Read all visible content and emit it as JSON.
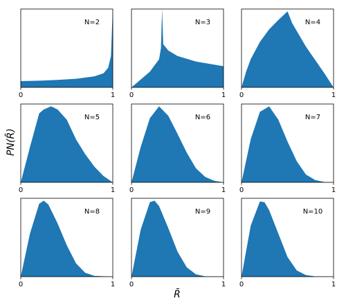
{
  "chart_data": [
    {
      "type": "area",
      "annotation": "N=2",
      "color": "#1f77b4",
      "xlim": [
        0,
        1
      ],
      "ylim": [
        0,
        1
      ],
      "xticks": [
        0,
        1
      ],
      "x": [
        0,
        0.2,
        0.4,
        0.6,
        0.8,
        0.9,
        0.95,
        0.98,
        1.0
      ],
      "values": [
        0.08,
        0.085,
        0.095,
        0.11,
        0.14,
        0.18,
        0.25,
        0.4,
        1.0
      ]
    },
    {
      "type": "area",
      "annotation": "N=3",
      "color": "#1f77b4",
      "xlim": [
        0,
        1
      ],
      "ylim": [
        0,
        1
      ],
      "xticks": [
        0,
        1
      ],
      "x": [
        0,
        0.1,
        0.2,
        0.3,
        0.32,
        0.333,
        0.345,
        0.4,
        0.5,
        0.7,
        1.0
      ],
      "values": [
        0,
        0.1,
        0.2,
        0.36,
        0.5,
        1.0,
        0.55,
        0.47,
        0.4,
        0.33,
        0.27
      ]
    },
    {
      "type": "area",
      "annotation": "N=4",
      "color": "#1f77b4",
      "xlim": [
        0,
        1
      ],
      "ylim": [
        0,
        1
      ],
      "xticks": [
        0,
        1
      ],
      "x": [
        0,
        0.05,
        0.1,
        0.2,
        0.3,
        0.4,
        0.5,
        0.55,
        0.6,
        0.7,
        0.8,
        0.9,
        1.0
      ],
      "values": [
        0,
        0.2,
        0.36,
        0.58,
        0.74,
        0.86,
        0.97,
        0.82,
        0.72,
        0.52,
        0.35,
        0.18,
        0
      ]
    },
    {
      "type": "area",
      "annotation": "N=5",
      "color": "#1f77b4",
      "xlim": [
        0,
        1
      ],
      "ylim": [
        0,
        1
      ],
      "xticks": [
        0,
        1
      ],
      "ylabel": "PN(R̄)",
      "x": [
        0,
        0.1,
        0.2,
        0.25,
        0.33,
        0.4,
        0.5,
        0.6,
        0.7,
        0.8,
        0.9,
        1.0
      ],
      "values": [
        0,
        0.45,
        0.88,
        0.93,
        0.97,
        0.93,
        0.8,
        0.55,
        0.36,
        0.2,
        0.08,
        0
      ]
    },
    {
      "type": "area",
      "annotation": "N=6",
      "color": "#1f77b4",
      "xlim": [
        0,
        1
      ],
      "ylim": [
        0,
        1
      ],
      "xticks": [
        0,
        1
      ],
      "x": [
        0,
        0.1,
        0.2,
        0.3,
        0.4,
        0.5,
        0.6,
        0.7,
        0.8,
        0.9,
        1.0
      ],
      "values": [
        0,
        0.45,
        0.82,
        0.97,
        0.85,
        0.62,
        0.38,
        0.18,
        0.07,
        0.02,
        0
      ]
    },
    {
      "type": "area",
      "annotation": "N=7",
      "color": "#1f77b4",
      "xlim": [
        0,
        1
      ],
      "ylim": [
        0,
        1
      ],
      "xticks": [
        0,
        1
      ],
      "x": [
        0,
        0.1,
        0.2,
        0.3,
        0.4,
        0.5,
        0.6,
        0.7,
        0.8,
        0.9,
        1.0
      ],
      "values": [
        0,
        0.55,
        0.9,
        0.97,
        0.8,
        0.52,
        0.27,
        0.1,
        0.03,
        0.005,
        0
      ]
    },
    {
      "type": "area",
      "annotation": "N=8",
      "color": "#1f77b4",
      "xlim": [
        0,
        1
      ],
      "ylim": [
        0,
        1
      ],
      "xticks": [
        0,
        1
      ],
      "x": [
        0,
        0.1,
        0.2,
        0.25,
        0.3,
        0.4,
        0.5,
        0.6,
        0.7,
        0.8,
        1.0
      ],
      "values": [
        0,
        0.55,
        0.93,
        0.97,
        0.92,
        0.68,
        0.4,
        0.17,
        0.05,
        0.01,
        0
      ]
    },
    {
      "type": "area",
      "annotation": "N=9",
      "color": "#1f77b4",
      "xlim": [
        0,
        1
      ],
      "ylim": [
        0,
        1
      ],
      "xticks": [
        0,
        1
      ],
      "xlabel": "R̄",
      "x": [
        0,
        0.1,
        0.2,
        0.25,
        0.3,
        0.4,
        0.5,
        0.6,
        0.7,
        0.8,
        1.0
      ],
      "values": [
        0,
        0.6,
        0.95,
        0.97,
        0.9,
        0.62,
        0.32,
        0.12,
        0.03,
        0.005,
        0
      ]
    },
    {
      "type": "area",
      "annotation": "N=10",
      "color": "#1f77b4",
      "xlim": [
        0,
        1
      ],
      "ylim": [
        0,
        1
      ],
      "xticks": [
        0,
        1
      ],
      "x": [
        0,
        0.1,
        0.2,
        0.25,
        0.3,
        0.4,
        0.5,
        0.6,
        0.7,
        0.8,
        1.0
      ],
      "values": [
        0,
        0.65,
        0.96,
        0.95,
        0.85,
        0.55,
        0.25,
        0.08,
        0.02,
        0.003,
        0
      ]
    }
  ]
}
